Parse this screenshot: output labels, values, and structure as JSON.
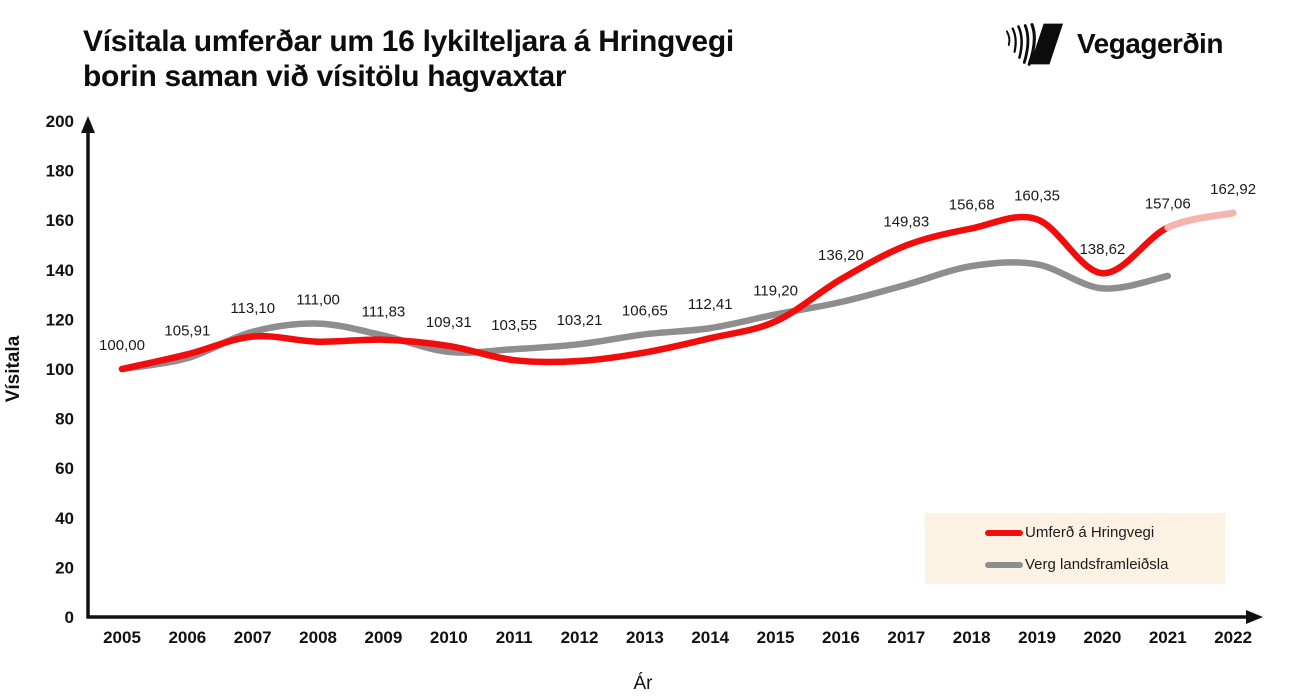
{
  "title": {
    "line1": "Vísitala umferðar um 16 lykilteljara á Hringvegi",
    "line2": "borin saman við vísitölu hagvaxtar"
  },
  "logo": {
    "text": "Vegagerðin"
  },
  "chart_data": {
    "type": "line",
    "x": [
      2005,
      2006,
      2007,
      2008,
      2009,
      2010,
      2011,
      2012,
      2013,
      2014,
      2015,
      2016,
      2017,
      2018,
      2019,
      2020,
      2021,
      2022
    ],
    "xlabel": "Ár",
    "ylabel": "Vísitala",
    "ylim": [
      0,
      200
    ],
    "yticks": [
      0,
      20,
      40,
      60,
      80,
      100,
      120,
      140,
      160,
      180,
      200
    ],
    "grid": false,
    "legend_position": "bottom-right",
    "series": [
      {
        "name": "Umferð á Hringvegi",
        "color": "#f20d0d",
        "values": [
          100.0,
          105.91,
          113.1,
          111.0,
          111.83,
          109.31,
          103.55,
          103.21,
          106.65,
          112.41,
          119.2,
          136.2,
          149.83,
          156.68,
          160.35,
          138.62,
          157.06,
          162.92
        ],
        "point_labels": [
          "100,00",
          "105,91",
          "113,10",
          "111,00",
          "111,83",
          "109,31",
          "103,55",
          "103,21",
          "106,65",
          "112,41",
          "119,20",
          "136,20",
          "149,83",
          "156,68",
          "160,35",
          "138,62",
          "157,06",
          "162,92"
        ],
        "forecast_from_index": 16,
        "forecast_color": "#f5b5ac",
        "forecast_label_color": "#ef3b2d"
      },
      {
        "name": "Verg landsframleiðsla",
        "color": "#8e8e8e",
        "values": [
          100,
          104.4,
          115,
          118.3,
          113.5,
          106.9,
          108,
          110,
          114,
          116.5,
          122,
          127,
          134,
          141.5,
          142.2,
          132.5,
          137.5
        ]
      }
    ]
  },
  "legend": {
    "background": "#fbf2e3",
    "items": [
      {
        "label": "Umferð á Hringvegi",
        "color": "#f20d0d"
      },
      {
        "label": "Verg landsframleiðsla",
        "color": "#8e8e8e"
      }
    ]
  }
}
